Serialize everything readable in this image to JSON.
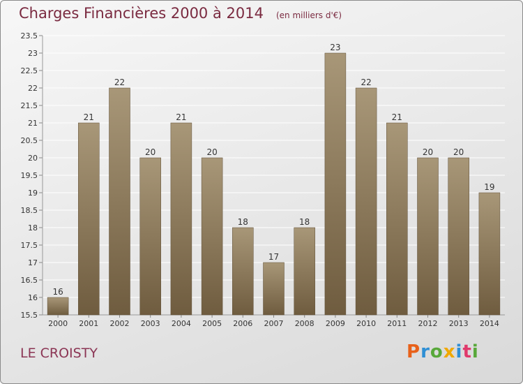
{
  "header": {
    "title": "Charges Financières 2000 à 2014",
    "unit": "(en milliers d'€)"
  },
  "footer": {
    "commune": "LE CROISTY",
    "logo_letters": [
      "P",
      "r",
      "o",
      "x",
      "i",
      "t",
      "i"
    ],
    "logo_colors": [
      "#e8611a",
      "#2f8fd4",
      "#58a83a",
      "#f1a800",
      "#2f8fd4",
      "#e03a6c",
      "#58a83a"
    ]
  },
  "chart_data": {
    "type": "bar",
    "title": "Charges Financières 2000 à 2014",
    "subtitle": "(en milliers d'€)",
    "xlabel": "",
    "ylabel": "",
    "categories": [
      "2000",
      "2001",
      "2002",
      "2003",
      "2004",
      "2005",
      "2006",
      "2007",
      "2008",
      "2009",
      "2010",
      "2011",
      "2012",
      "2013",
      "2014"
    ],
    "values": [
      16,
      21,
      22,
      20,
      21,
      20,
      18,
      17,
      18,
      23,
      22,
      21,
      20,
      20,
      19
    ],
    "value_labels": [
      "16",
      "21",
      "22",
      "20",
      "21",
      "20",
      "18",
      "17",
      "18",
      "23",
      "22",
      "21",
      "20",
      "20",
      "19"
    ],
    "ylim": [
      15.5,
      23.5
    ],
    "yticks": [
      "15.5",
      "16",
      "16.5",
      "17",
      "17.5",
      "18",
      "18.5",
      "19",
      "19.5",
      "20",
      "20.5",
      "21",
      "21.5",
      "22",
      "22.5",
      "23",
      "23.5"
    ],
    "grid": true,
    "colors": {
      "bar_top": "#a89778",
      "bar_bottom": "#6f5c3f",
      "grid": "#ffffff"
    }
  }
}
